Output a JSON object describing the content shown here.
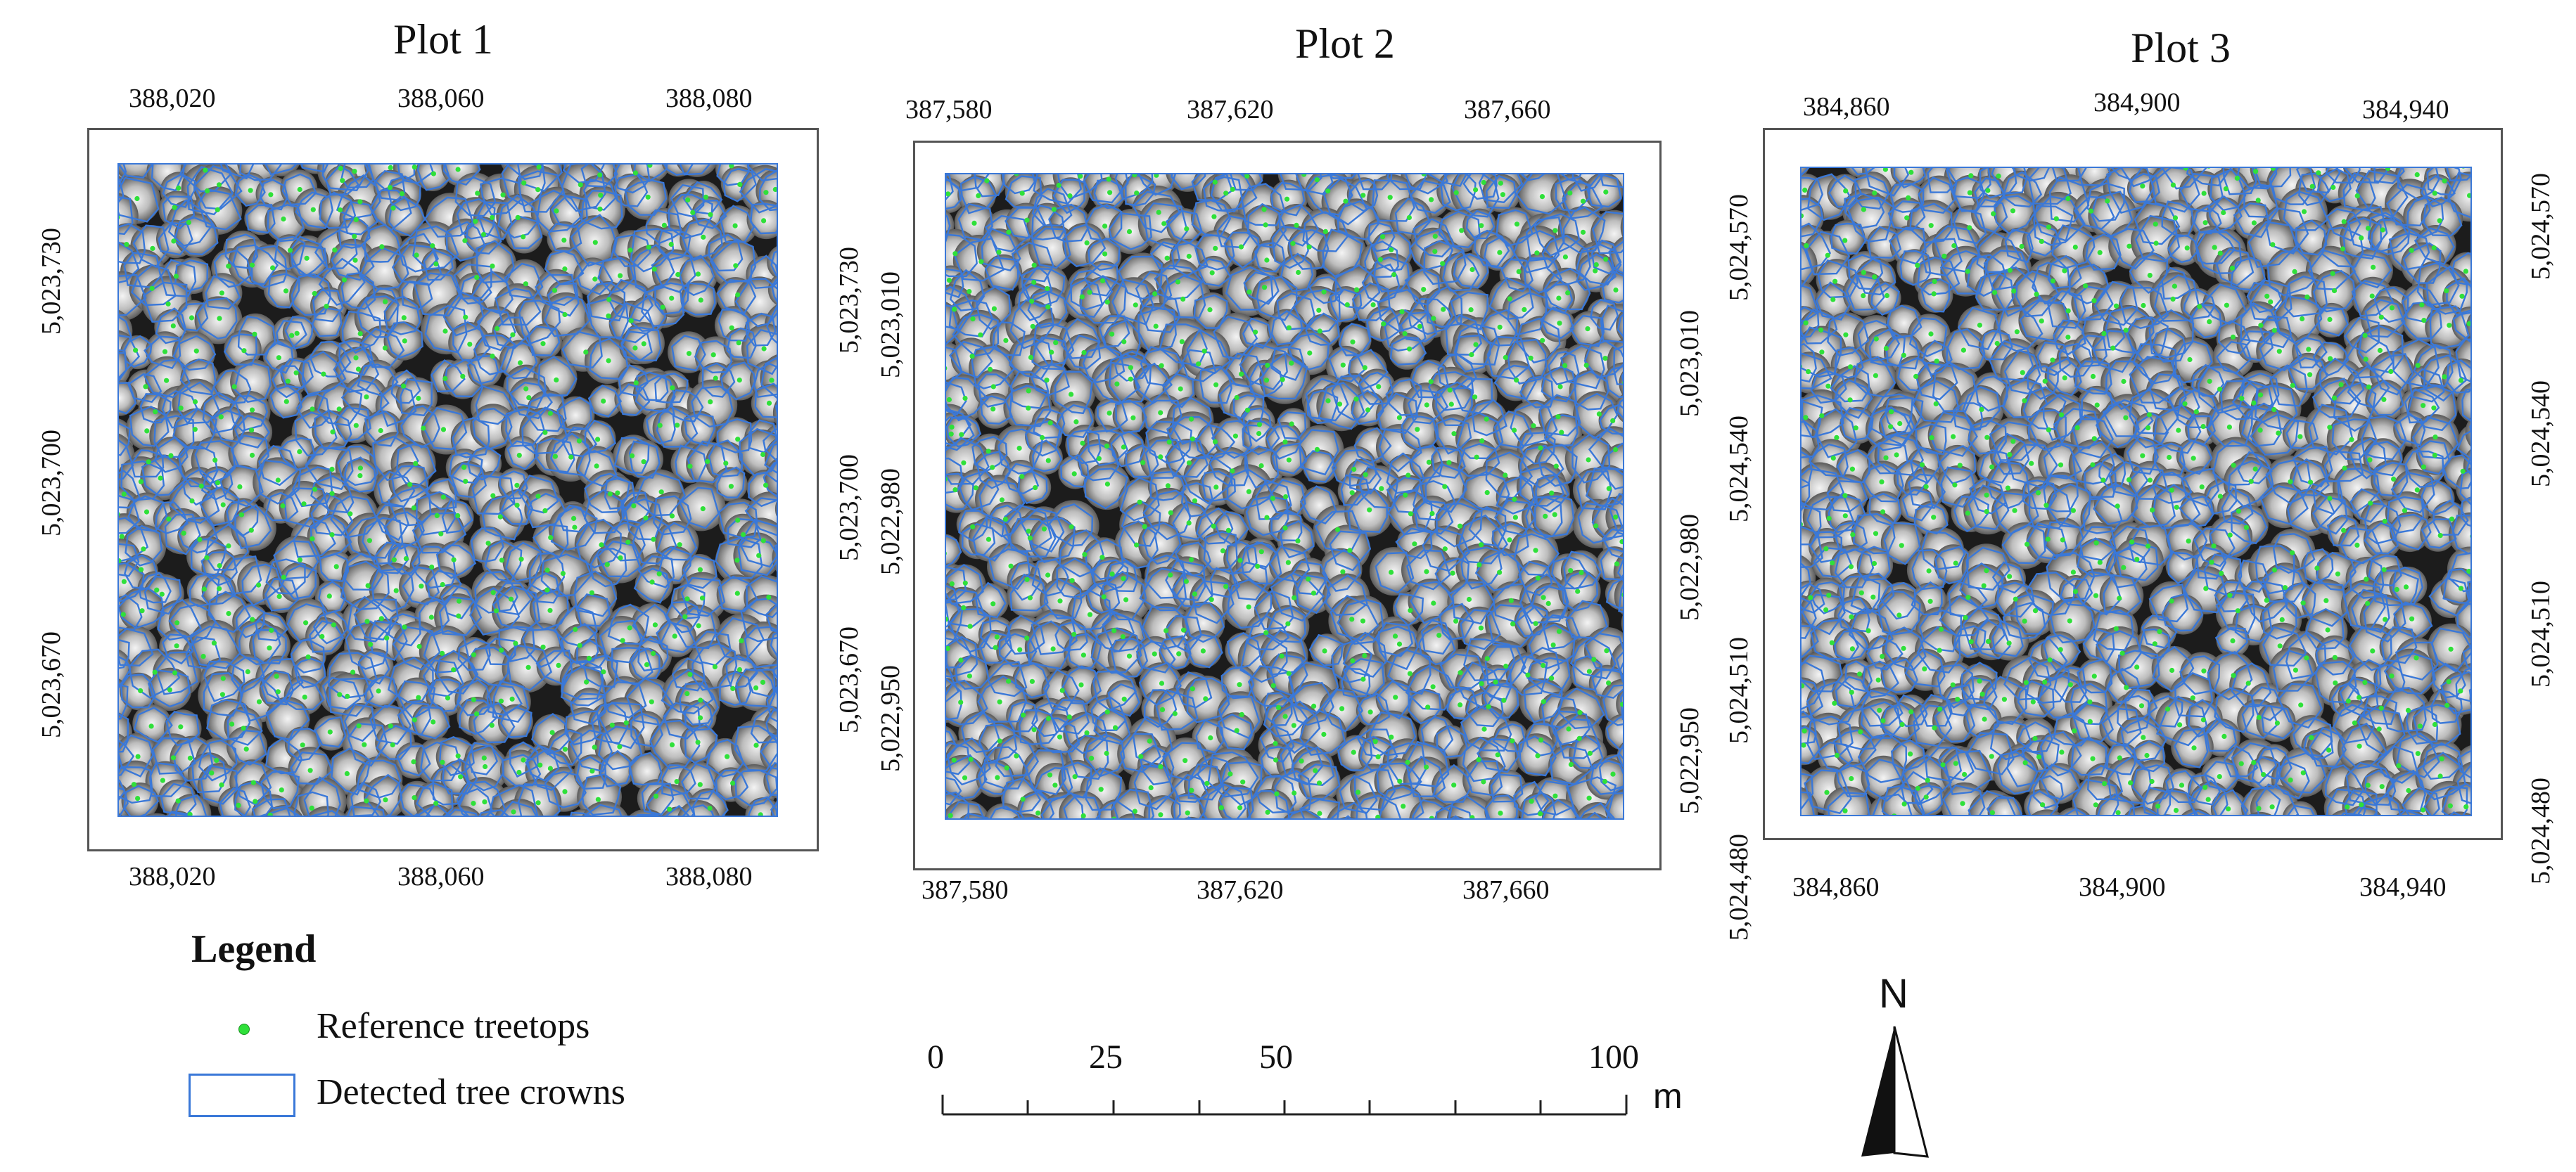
{
  "plots": [
    {
      "title": "Plot 1",
      "x_ticks_top": [
        "388,020",
        "388,060",
        "388,080"
      ],
      "x_ticks_bottom": [
        "388,020",
        "388,060",
        "388,080"
      ],
      "y_ticks_left": [
        "5,023,730",
        "5,023,700",
        "5,023,670"
      ],
      "y_ticks_right": [
        "5,023,730",
        "5,023,700",
        "5,023,670"
      ]
    },
    {
      "title": "Plot 2",
      "x_ticks_top": [
        "387,580",
        "387,620",
        "387,660"
      ],
      "x_ticks_bottom": [
        "387,580",
        "387,620",
        "387,660"
      ],
      "y_ticks_left": [
        "5,023,010",
        "5,022,980",
        "5,022,950"
      ],
      "y_ticks_right": [
        "5,023,010",
        "5,022,980",
        "5,022,950"
      ]
    },
    {
      "title": "Plot 3",
      "x_ticks_top": [
        "384,860",
        "384,900",
        "384,940"
      ],
      "x_ticks_bottom": [
        "384,860",
        "384,900",
        "384,940"
      ],
      "y_ticks_left": [
        "5,024,570",
        "5,024,540",
        "5,024,510",
        "5,024,480"
      ],
      "y_ticks_right": [
        "5,024,570",
        "5,024,540",
        "5,024,510",
        "5,024,480"
      ]
    }
  ],
  "legend": {
    "title": "Legend",
    "items": [
      {
        "label": "Reference treetops",
        "symbol": "green-dot-icon"
      },
      {
        "label": "Detected tree crowns",
        "symbol": "blue-outline-icon"
      }
    ]
  },
  "scale_bar": {
    "labels": [
      "0",
      "25",
      "50",
      "100"
    ],
    "unit": "m"
  },
  "north_arrow": {
    "label": "N"
  },
  "colors": {
    "crown_outline": "#3a78d8",
    "treetop": "#2fe03a",
    "background": "#ffffff"
  }
}
